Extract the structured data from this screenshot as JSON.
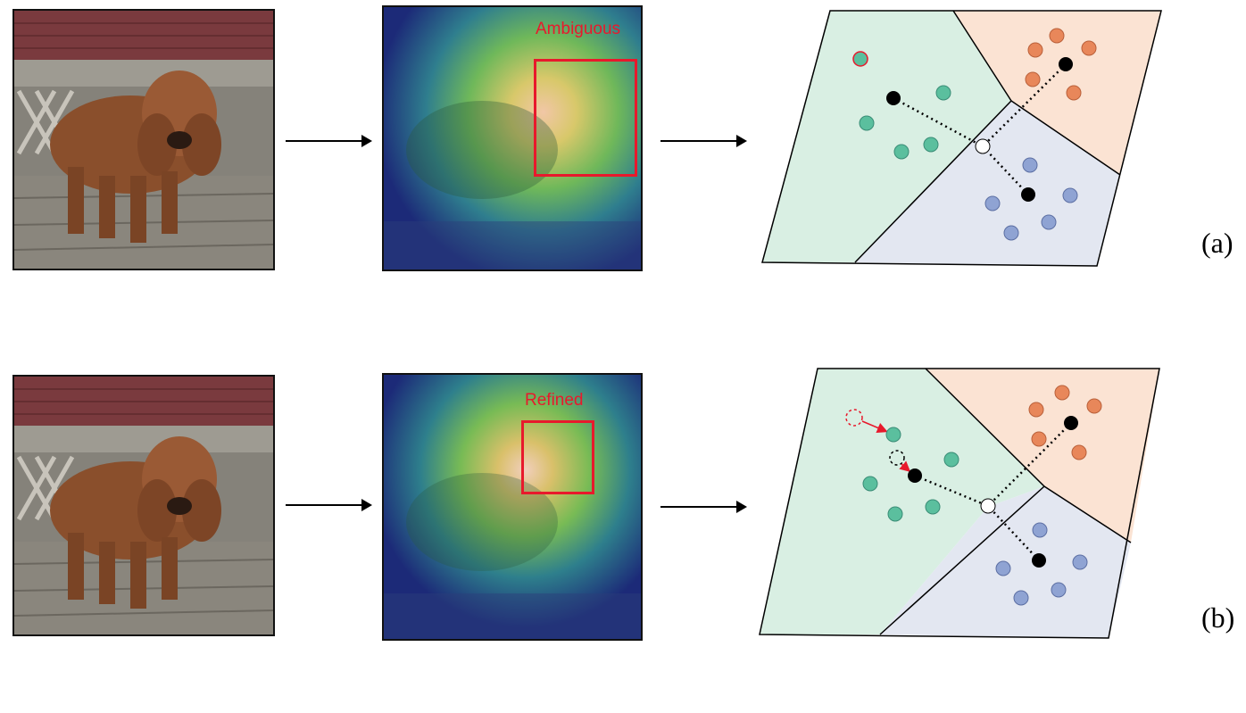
{
  "rows": [
    {
      "id": "a",
      "panel_label": "(a)",
      "attention_label": "Ambiguous",
      "colors": {
        "green_region": "#d9efe3",
        "orange_region": "#fbe3d3",
        "blue_region": "#e3e7f1",
        "green_point": "#5bbf9e",
        "orange_point": "#e8875a",
        "blue_point": "#8fa3d3"
      }
    },
    {
      "id": "b",
      "panel_label": "(b)",
      "attention_label": "Refined",
      "colors": {
        "green_region": "#d9efe3",
        "orange_region": "#fbe3d3",
        "blue_region": "#e3e7f1",
        "green_point": "#5bbf9e",
        "orange_point": "#e8875a",
        "blue_point": "#8fa3d3"
      }
    }
  ],
  "icons": {
    "arrow": "right-arrow-icon",
    "photo": "poodle-photo",
    "heatmap": "attention-heatmap"
  }
}
